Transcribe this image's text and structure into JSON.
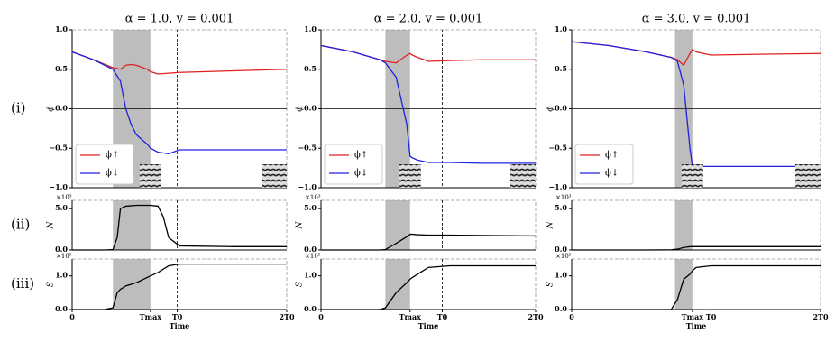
{
  "row_labels": [
    "(i)",
    "(ii)",
    "(iii)"
  ],
  "chart_data": [
    {
      "type": "line",
      "title": "α = 1.0, v = 0.001",
      "ylabel": "ϕ",
      "xlim": [
        0,
        2
      ],
      "ylim": [
        -1,
        1
      ],
      "yticks": [
        {
          "value": -1,
          "label": "−1.0"
        },
        {
          "value": -0.5,
          "label": "−0.5"
        },
        {
          "value": 0,
          "label": "0.0"
        },
        {
          "value": 0.5,
          "label": "0.5"
        },
        {
          "value": 1,
          "label": "1.0"
        }
      ],
      "hline": 0,
      "shaded_span": [
        0.38,
        0.73
      ],
      "vline": 0.98,
      "legend": "lower left",
      "x": [
        0,
        0.2,
        0.38,
        0.45,
        0.5,
        0.55,
        0.6,
        0.7,
        0.73,
        0.8,
        0.9,
        1.0,
        1.5,
        2.0
      ],
      "series": [
        {
          "name": "ϕ↑",
          "color": "#e02020",
          "values": [
            0.72,
            0.62,
            0.52,
            0.5,
            0.55,
            0.56,
            0.55,
            0.5,
            0.47,
            0.44,
            0.45,
            0.46,
            0.48,
            0.5
          ]
        },
        {
          "name": "ϕ↓",
          "color": "#2020e0",
          "values": [
            0.72,
            0.62,
            0.5,
            0.35,
            0.0,
            -0.2,
            -0.33,
            -0.45,
            -0.5,
            -0.55,
            -0.57,
            -0.52,
            -0.52,
            -0.52
          ]
        }
      ]
    },
    {
      "type": "line",
      "title": "α = 2.0, v = 0.001",
      "ylabel": "ϕ",
      "xlim": [
        0,
        2
      ],
      "ylim": [
        -1,
        1
      ],
      "yticks": [
        {
          "value": -1,
          "label": "−1.0"
        },
        {
          "value": -0.5,
          "label": "−0.5"
        },
        {
          "value": 0,
          "label": "0.0"
        },
        {
          "value": 0.5,
          "label": "0.5"
        },
        {
          "value": 1,
          "label": "1.0"
        }
      ],
      "hline": 0,
      "shaded_span": [
        0.6,
        0.83
      ],
      "vline": 1.13,
      "legend": "lower left",
      "x": [
        0,
        0.3,
        0.55,
        0.6,
        0.7,
        0.8,
        0.83,
        0.85,
        0.9,
        1.0,
        1.2,
        1.5,
        2.0
      ],
      "series": [
        {
          "name": "ϕ↑",
          "color": "#e02020",
          "values": [
            0.8,
            0.72,
            0.62,
            0.6,
            0.58,
            0.68,
            0.7,
            0.68,
            0.65,
            0.6,
            0.61,
            0.62,
            0.62
          ]
        },
        {
          "name": "ϕ↓",
          "color": "#2020e0",
          "values": [
            0.8,
            0.72,
            0.62,
            0.58,
            0.4,
            -0.2,
            -0.6,
            -0.62,
            -0.65,
            -0.68,
            -0.68,
            -0.69,
            -0.69
          ]
        }
      ]
    },
    {
      "type": "line",
      "title": "α = 3.0, v = 0.001",
      "ylabel": "ϕ",
      "xlim": [
        0,
        2
      ],
      "ylim": [
        -1,
        1
      ],
      "yticks": [
        {
          "value": -1,
          "label": "−1.0"
        },
        {
          "value": -0.5,
          "label": "−0.5"
        },
        {
          "value": 0,
          "label": "0.0"
        },
        {
          "value": 0.5,
          "label": "0.5"
        },
        {
          "value": 1,
          "label": "1.0"
        }
      ],
      "hline": 0,
      "shaded_span": [
        0.83,
        0.97
      ],
      "vline": 1.12,
      "legend": "lower left",
      "x": [
        0,
        0.3,
        0.6,
        0.8,
        0.85,
        0.9,
        0.95,
        0.97,
        1.0,
        1.12,
        1.5,
        2.0
      ],
      "series": [
        {
          "name": "ϕ↑",
          "color": "#e02020",
          "values": [
            0.85,
            0.8,
            0.72,
            0.65,
            0.62,
            0.55,
            0.7,
            0.75,
            0.72,
            0.68,
            0.69,
            0.7
          ]
        },
        {
          "name": "ϕ↓",
          "color": "#2020e0",
          "values": [
            0.85,
            0.8,
            0.72,
            0.65,
            0.6,
            0.3,
            -0.5,
            -0.72,
            -0.73,
            -0.73,
            -0.73,
            -0.73
          ]
        }
      ]
    },
    {
      "type": "line",
      "ylabel": "N",
      "multiplier": "×10³",
      "xlim": [
        0,
        2
      ],
      "ylim": [
        0,
        6
      ],
      "yticks": [
        {
          "value": 0,
          "label": "0.0"
        },
        {
          "value": 5,
          "label": "5.0"
        }
      ],
      "shaded_span": [
        0.38,
        0.73
      ],
      "vline": 0.98,
      "x": [
        0,
        0.3,
        0.38,
        0.42,
        0.45,
        0.5,
        0.6,
        0.73,
        0.8,
        0.85,
        0.9,
        1.0,
        1.5,
        2.0
      ],
      "series": [
        {
          "color": "#000000",
          "values": [
            0,
            0,
            0.05,
            1.5,
            5.0,
            5.3,
            5.4,
            5.4,
            5.3,
            4.0,
            1.5,
            0.5,
            0.4,
            0.4
          ]
        }
      ]
    },
    {
      "type": "line",
      "ylabel": "N",
      "multiplier": "×10³",
      "xlim": [
        0,
        2
      ],
      "ylim": [
        0,
        6
      ],
      "yticks": [
        {
          "value": 0,
          "label": "0.0"
        },
        {
          "value": 5,
          "label": "5.0"
        }
      ],
      "shaded_span": [
        0.6,
        0.83
      ],
      "vline": 1.13,
      "x": [
        0,
        0.3,
        0.55,
        0.6,
        0.7,
        0.8,
        0.83,
        0.85,
        0.9,
        1.0,
        1.2,
        1.5,
        2.0
      ],
      "series": [
        {
          "color": "#000000",
          "values": [
            0,
            0,
            0,
            0.05,
            0.8,
            1.6,
            1.9,
            1.9,
            1.85,
            1.8,
            1.8,
            1.75,
            1.7
          ]
        }
      ]
    },
    {
      "type": "line",
      "ylabel": "N",
      "multiplier": "×10³",
      "xlim": [
        0,
        2
      ],
      "ylim": [
        0,
        6
      ],
      "yticks": [
        {
          "value": 0,
          "label": "0.0"
        },
        {
          "value": 5,
          "label": "5.0"
        }
      ],
      "shaded_span": [
        0.83,
        0.97
      ],
      "vline": 1.12,
      "x": [
        0,
        0.3,
        0.6,
        0.8,
        0.85,
        0.9,
        0.95,
        0.97,
        1.0,
        1.12,
        1.5,
        2.0
      ],
      "series": [
        {
          "color": "#000000",
          "values": [
            0,
            0,
            0,
            0.02,
            0.1,
            0.3,
            0.4,
            0.4,
            0.4,
            0.4,
            0.4,
            0.4
          ]
        }
      ]
    },
    {
      "type": "line",
      "ylabel": "S",
      "multiplier": "×10⁵",
      "xlabel": "Time",
      "xlim": [
        0,
        2
      ],
      "ylim": [
        0,
        1.5
      ],
      "yticks": [
        {
          "value": 0,
          "label": "0.0"
        },
        {
          "value": 1,
          "label": "1.0"
        }
      ],
      "xticks": [
        0,
        {
          "value": 0.73,
          "label": "Tmax"
        },
        {
          "value": 0.98,
          "label": "T0"
        },
        {
          "value": 2,
          "label": "2T0"
        }
      ],
      "shaded_span": [
        0.38,
        0.73
      ],
      "vline": 0.98,
      "x": [
        0,
        0.3,
        0.38,
        0.42,
        0.45,
        0.5,
        0.6,
        0.73,
        0.8,
        0.85,
        0.9,
        1.0,
        1.5,
        2.0
      ],
      "series": [
        {
          "color": "#000000",
          "values": [
            0,
            0,
            0.05,
            0.5,
            0.6,
            0.7,
            0.8,
            1.0,
            1.1,
            1.2,
            1.3,
            1.35,
            1.35,
            1.35
          ]
        }
      ]
    },
    {
      "type": "line",
      "ylabel": "S",
      "multiplier": "×10⁵",
      "xlabel": "Time",
      "xlim": [
        0,
        2
      ],
      "ylim": [
        0,
        1.5
      ],
      "yticks": [
        {
          "value": 0,
          "label": "0.0"
        },
        {
          "value": 1,
          "label": "1.0"
        }
      ],
      "xticks": [
        0,
        {
          "value": 0.83,
          "label": "Tmax"
        },
        {
          "value": 1.13,
          "label": "T0"
        },
        {
          "value": 2,
          "label": "2T0"
        }
      ],
      "shaded_span": [
        0.6,
        0.83
      ],
      "vline": 1.13,
      "x": [
        0,
        0.3,
        0.55,
        0.6,
        0.7,
        0.8,
        0.83,
        0.85,
        0.9,
        1.0,
        1.2,
        1.5,
        2.0
      ],
      "series": [
        {
          "color": "#000000",
          "values": [
            0,
            0,
            0,
            0.05,
            0.5,
            0.8,
            0.9,
            0.95,
            1.05,
            1.25,
            1.3,
            1.3,
            1.3
          ]
        }
      ]
    },
    {
      "type": "line",
      "ylabel": "S",
      "multiplier": "×10⁵",
      "xlabel": "Time",
      "xlim": [
        0,
        2
      ],
      "ylim": [
        0,
        1.5
      ],
      "yticks": [
        {
          "value": 0,
          "label": "0.0"
        },
        {
          "value": 1,
          "label": "1.0"
        }
      ],
      "xticks": [
        0,
        {
          "value": 0.97,
          "label": "Tmax"
        },
        {
          "value": 1.12,
          "label": "T0"
        },
        {
          "value": 2,
          "label": "2T0"
        }
      ],
      "shaded_span": [
        0.83,
        0.97
      ],
      "vline": 1.12,
      "x": [
        0,
        0.3,
        0.6,
        0.8,
        0.85,
        0.9,
        0.95,
        0.97,
        1.0,
        1.12,
        1.5,
        2.0
      ],
      "series": [
        {
          "color": "#000000",
          "values": [
            0,
            0,
            0,
            0,
            0.3,
            0.9,
            1.05,
            1.15,
            1.25,
            1.3,
            1.3,
            1.3
          ]
        }
      ]
    }
  ]
}
